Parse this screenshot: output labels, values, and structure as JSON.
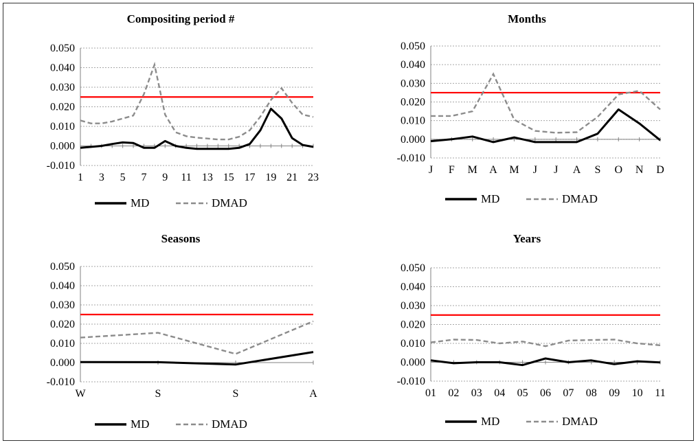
{
  "colors": {
    "md": "#000000",
    "dmad": "#8c8c8c",
    "threshold": "#ff0000",
    "grid": "#a6a6a6",
    "axis": "#808080"
  },
  "chart_data": [
    {
      "type": "line",
      "title": "Compositing period #",
      "ylim": [
        -0.01,
        0.05
      ],
      "yticks": [
        -0.01,
        0,
        0.01,
        0.02,
        0.03,
        0.04,
        0.05
      ],
      "ytick_labels": [
        "-0.010",
        "0.000",
        "0.010",
        "0.020",
        "0.030",
        "0.040",
        "0.050"
      ],
      "grid": true,
      "legend_position": "bottom",
      "x": [
        1,
        2,
        3,
        4,
        5,
        6,
        7,
        8,
        9,
        10,
        11,
        12,
        13,
        14,
        15,
        16,
        17,
        18,
        19,
        20,
        21,
        22,
        23
      ],
      "xtick_labels": [
        "1",
        "3",
        "5",
        "7",
        "9",
        "11",
        "13",
        "15",
        "17",
        "19",
        "21",
        "23"
      ],
      "xtick_values": [
        1,
        3,
        5,
        7,
        9,
        11,
        13,
        15,
        17,
        19,
        21,
        23
      ],
      "threshold": 0.025,
      "series": [
        {
          "name": "MD",
          "style": "solid",
          "values": [
            -0.001,
            -0.0005,
            0,
            0.001,
            0.0018,
            0.0015,
            -0.001,
            -0.001,
            0.0025,
            0,
            -0.001,
            -0.0015,
            -0.0015,
            -0.0015,
            -0.0015,
            -0.001,
            0.001,
            0.008,
            0.019,
            0.014,
            0.004,
            0.0005,
            -0.0005
          ]
        },
        {
          "name": "DMAD",
          "style": "dashed",
          "values": [
            0.013,
            0.0115,
            0.0115,
            0.0125,
            0.014,
            0.0155,
            0.0265,
            0.0415,
            0.016,
            0.007,
            0.005,
            0.0042,
            0.0038,
            0.0033,
            0.0033,
            0.0047,
            0.008,
            0.015,
            0.0235,
            0.0295,
            0.022,
            0.016,
            0.0148
          ]
        }
      ]
    },
    {
      "type": "line",
      "title": "Months",
      "ylim": [
        -0.01,
        0.05
      ],
      "yticks": [
        -0.01,
        0,
        0.01,
        0.02,
        0.03,
        0.04,
        0.05
      ],
      "ytick_labels": [
        "-0.010",
        "0.000",
        "0.010",
        "0.020",
        "0.030",
        "0.040",
        "0.050"
      ],
      "grid": true,
      "legend_position": "bottom",
      "categories": [
        "J",
        "F",
        "M",
        "A",
        "M",
        "J",
        "J",
        "A",
        "S",
        "O",
        "N",
        "D"
      ],
      "threshold": 0.025,
      "series": [
        {
          "name": "MD",
          "style": "solid",
          "values": [
            -0.001,
            0,
            0.0015,
            -0.0015,
            0.001,
            -0.0015,
            -0.0015,
            -0.0015,
            0.003,
            0.016,
            0.0085,
            -0.0005
          ]
        },
        {
          "name": "DMAD",
          "style": "dashed",
          "values": [
            0.0125,
            0.0125,
            0.015,
            0.035,
            0.0105,
            0.0045,
            0.0035,
            0.0038,
            0.012,
            0.024,
            0.026,
            0.016
          ]
        }
      ]
    },
    {
      "type": "line",
      "title": "Seasons",
      "ylim": [
        -0.01,
        0.05
      ],
      "yticks": [
        -0.01,
        0,
        0.01,
        0.02,
        0.03,
        0.04,
        0.05
      ],
      "ytick_labels": [
        "-0.010",
        "0.000",
        "0.010",
        "0.020",
        "0.030",
        "0.040",
        "0.050"
      ],
      "grid": true,
      "legend_position": "bottom",
      "categories": [
        "W",
        "S",
        "S",
        "A"
      ],
      "threshold": 0.025,
      "series": [
        {
          "name": "MD",
          "style": "solid",
          "values": [
            0.0003,
            0.0002,
            -0.001,
            0.0055
          ]
        },
        {
          "name": "DMAD",
          "style": "dashed",
          "values": [
            0.013,
            0.0155,
            0.0045,
            0.0215
          ]
        }
      ]
    },
    {
      "type": "line",
      "title": "Years",
      "ylim": [
        -0.01,
        0.05
      ],
      "yticks": [
        -0.01,
        0,
        0.01,
        0.02,
        0.03,
        0.04,
        0.05
      ],
      "ytick_labels": [
        "-0.010",
        "0.000",
        "0.010",
        "0.020",
        "0.030",
        "0.040",
        "0.050"
      ],
      "grid": true,
      "legend_position": "bottom",
      "categories": [
        "01",
        "02",
        "03",
        "04",
        "05",
        "06",
        "07",
        "08",
        "09",
        "10",
        "11"
      ],
      "threshold": 0.025,
      "series": [
        {
          "name": "MD",
          "style": "solid",
          "values": [
            0.001,
            -0.0005,
            0,
            0,
            -0.0015,
            0.002,
            0,
            0.001,
            -0.001,
            0.0005,
            -0.0001
          ]
        },
        {
          "name": "DMAD",
          "style": "dashed",
          "values": [
            0.0105,
            0.012,
            0.0118,
            0.01,
            0.011,
            0.0085,
            0.0115,
            0.0118,
            0.012,
            0.01,
            0.009
          ]
        }
      ]
    }
  ]
}
